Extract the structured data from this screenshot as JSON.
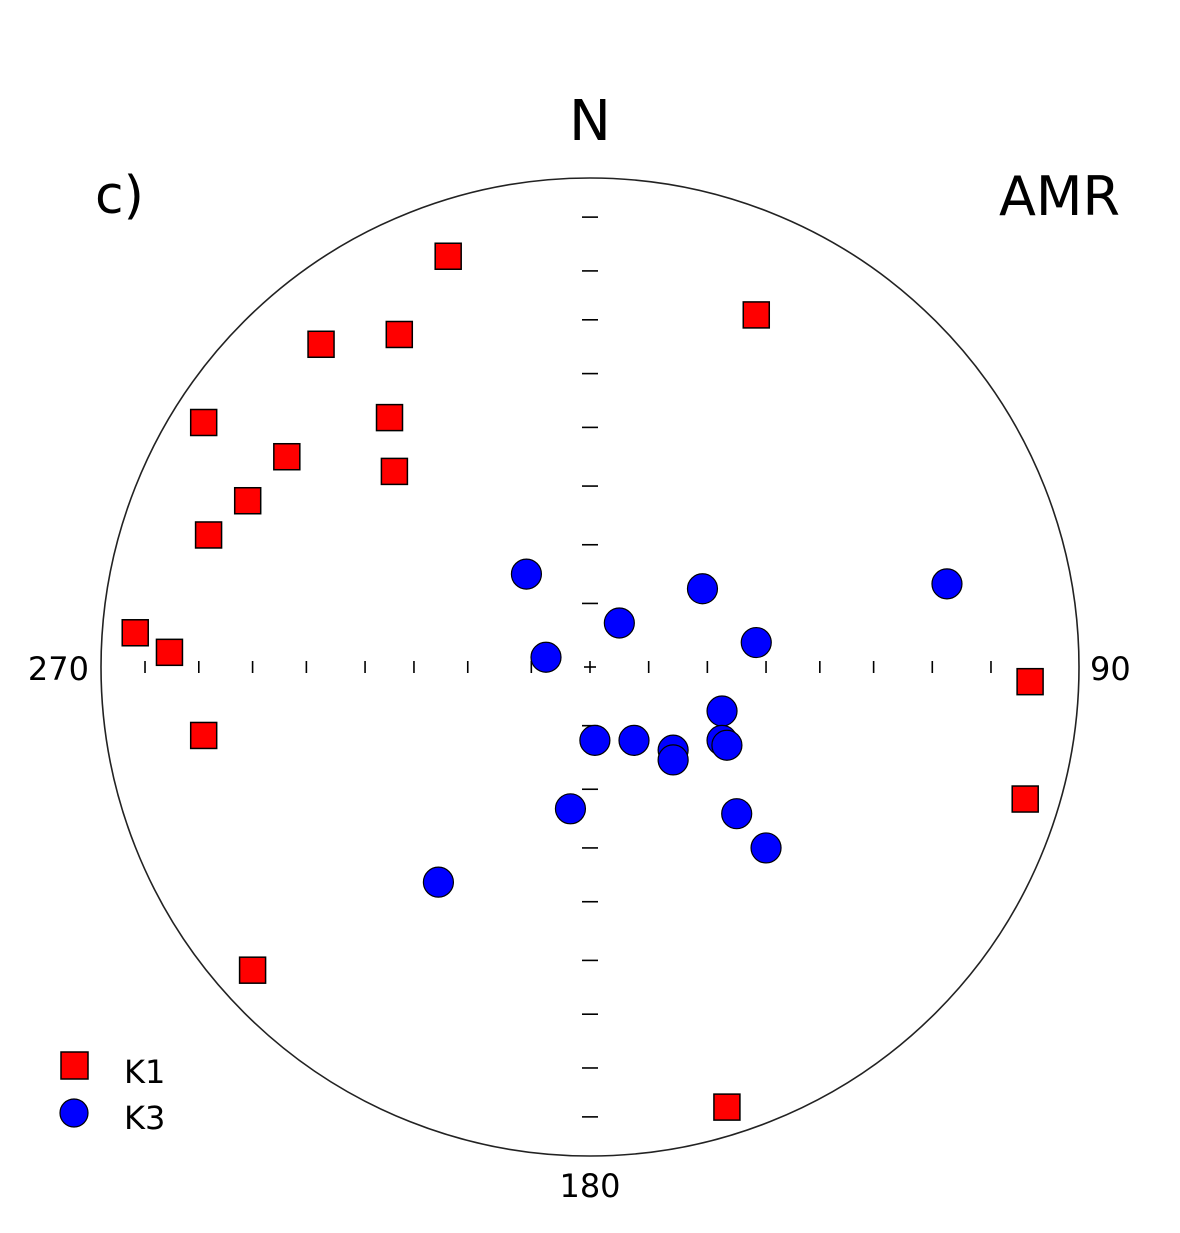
{
  "chart_data": {
    "type": "scatter",
    "projection": "equal-area stereonet, lower hemisphere (x = east, y = north; normalized to primitive circle radius 1)",
    "panel_label": "c)",
    "title": "AMR",
    "north_label": "N",
    "azimuth_labels": {
      "east": "90",
      "south": "180",
      "west": "270"
    },
    "center_mark": "+",
    "legend_position": "bottom-left",
    "series": [
      {
        "name": "K1",
        "marker": "square",
        "color": "#ff0000",
        "points": [
          {
            "x": -0.29,
            "y": 0.84
          },
          {
            "x": 0.34,
            "y": 0.72
          },
          {
            "x": -0.55,
            "y": 0.66
          },
          {
            "x": -0.39,
            "y": 0.68
          },
          {
            "x": -0.79,
            "y": 0.5
          },
          {
            "x": -0.41,
            "y": 0.51
          },
          {
            "x": -0.62,
            "y": 0.43
          },
          {
            "x": -0.4,
            "y": 0.4
          },
          {
            "x": -0.7,
            "y": 0.34
          },
          {
            "x": -0.78,
            "y": 0.27
          },
          {
            "x": -0.93,
            "y": 0.07
          },
          {
            "x": -0.86,
            "y": 0.03
          },
          {
            "x": -0.79,
            "y": -0.14
          },
          {
            "x": 0.9,
            "y": -0.03
          },
          {
            "x": 0.89,
            "y": -0.27
          },
          {
            "x": -0.69,
            "y": -0.62
          },
          {
            "x": 0.28,
            "y": -0.9
          }
        ]
      },
      {
        "name": "K3",
        "marker": "circle",
        "color": "#0000ff",
        "points": [
          {
            "x": -0.13,
            "y": 0.19
          },
          {
            "x": 0.23,
            "y": 0.16
          },
          {
            "x": 0.73,
            "y": 0.17
          },
          {
            "x": 0.06,
            "y": 0.09
          },
          {
            "x": 0.34,
            "y": 0.05
          },
          {
            "x": -0.09,
            "y": 0.02
          },
          {
            "x": 0.27,
            "y": -0.09
          },
          {
            "x": 0.01,
            "y": -0.15
          },
          {
            "x": 0.09,
            "y": -0.15
          },
          {
            "x": 0.17,
            "y": -0.17
          },
          {
            "x": 0.17,
            "y": -0.19
          },
          {
            "x": 0.27,
            "y": -0.15
          },
          {
            "x": 0.28,
            "y": -0.16
          },
          {
            "x": -0.04,
            "y": -0.29
          },
          {
            "x": 0.3,
            "y": -0.3
          },
          {
            "x": 0.36,
            "y": -0.37
          },
          {
            "x": -0.31,
            "y": -0.44
          }
        ]
      }
    ],
    "ticks": {
      "horizontal": [
        -0.91,
        -0.8,
        -0.69,
        -0.58,
        -0.46,
        -0.36,
        -0.25,
        -0.12,
        0.12,
        0.24,
        0.36,
        0.47,
        0.58,
        0.7,
        0.82
      ],
      "vertical": [
        0.92,
        0.81,
        0.71,
        0.6,
        0.49,
        0.37,
        0.25,
        0.13,
        -0.12,
        -0.25,
        -0.37,
        -0.48,
        -0.6,
        -0.71,
        -0.82,
        -0.92
      ]
    }
  },
  "legend": {
    "items": [
      {
        "label": "K1",
        "marker": "square",
        "color": "#ff0000"
      },
      {
        "label": "K3",
        "marker": "circle",
        "color": "#0000ff"
      }
    ]
  }
}
